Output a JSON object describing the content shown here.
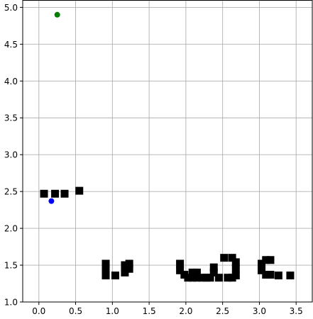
{
  "chart_data": {
    "type": "scatter",
    "title": "",
    "xlabel": "",
    "ylabel": "",
    "xlim": [
      -0.22,
      3.72
    ],
    "ylim": [
      1.0,
      5.1
    ],
    "xticks": [
      0.0,
      0.5,
      1.0,
      1.5,
      2.0,
      2.5,
      3.0,
      3.5
    ],
    "xtick_labels": [
      "0.0",
      "0.5",
      "1.0",
      "1.5",
      "2.0",
      "2.5",
      "3.0",
      "3.5"
    ],
    "yticks": [
      1.0,
      1.5,
      2.0,
      2.5,
      3.0,
      3.5,
      4.0,
      4.5,
      5.0
    ],
    "ytick_labels": [
      "1.0",
      "1.5",
      "2.0",
      "2.5",
      "3.0",
      "3.5",
      "4.0",
      "4.5",
      "5.0"
    ],
    "grid": true,
    "series": [
      {
        "marker": "square",
        "color": "#000000",
        "points": [
          [
            0.07,
            2.47
          ],
          [
            0.22,
            2.47
          ],
          [
            0.35,
            2.47
          ],
          [
            0.55,
            2.51
          ],
          [
            0.91,
            1.52
          ],
          [
            0.91,
            1.44
          ],
          [
            0.91,
            1.36
          ],
          [
            1.04,
            1.36
          ],
          [
            1.17,
            1.5
          ],
          [
            1.17,
            1.4
          ],
          [
            1.23,
            1.52
          ],
          [
            1.23,
            1.45
          ],
          [
            1.92,
            1.52
          ],
          [
            1.92,
            1.43
          ],
          [
            1.98,
            1.37
          ],
          [
            2.03,
            1.33
          ],
          [
            2.09,
            1.4
          ],
          [
            2.09,
            1.33
          ],
          [
            2.15,
            1.4
          ],
          [
            2.15,
            1.33
          ],
          [
            2.22,
            1.33
          ],
          [
            2.28,
            1.33
          ],
          [
            2.33,
            1.33
          ],
          [
            2.38,
            1.47
          ],
          [
            2.38,
            1.4
          ],
          [
            2.45,
            1.33
          ],
          [
            2.52,
            1.6
          ],
          [
            2.57,
            1.33
          ],
          [
            2.63,
            1.6
          ],
          [
            2.68,
            1.54
          ],
          [
            2.68,
            1.45
          ],
          [
            2.68,
            1.36
          ],
          [
            2.63,
            1.33
          ],
          [
            3.03,
            1.52
          ],
          [
            3.03,
            1.43
          ],
          [
            3.09,
            1.57
          ],
          [
            3.09,
            1.37
          ],
          [
            3.15,
            1.57
          ],
          [
            3.15,
            1.37
          ],
          [
            3.26,
            1.36
          ],
          [
            3.42,
            1.36
          ]
        ]
      },
      {
        "marker": "circle",
        "color": "#0000ff",
        "points": [
          [
            0.17,
            2.37
          ]
        ]
      },
      {
        "marker": "circle",
        "color": "#008000",
        "points": [
          [
            0.25,
            4.9
          ]
        ]
      }
    ]
  }
}
